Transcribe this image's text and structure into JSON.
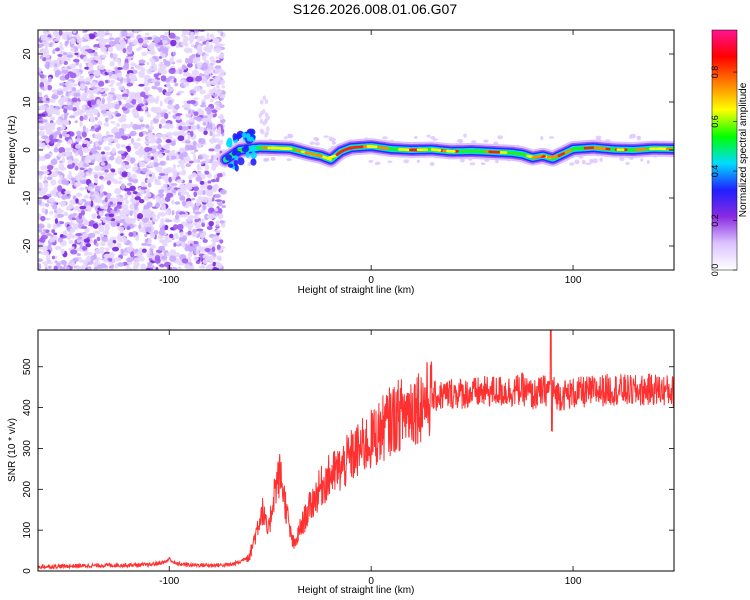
{
  "figure_title": "S126.2026.008.01.06.G07",
  "chart_data": [
    {
      "type": "heatmap",
      "title": "S126.2026.008.01.06.G07",
      "xlabel": "Height of straight line (km)",
      "ylabel": "Frequency (Hz)",
      "xlim": [
        -165,
        150
      ],
      "ylim": [
        -25,
        25
      ],
      "xticks": [
        -100,
        0,
        100
      ],
      "xtick_labels": [
        "-100",
        "0",
        "100"
      ],
      "yticks": [
        -20,
        -10,
        0,
        10,
        20
      ],
      "ytick_labels": [
        "-20",
        "-10",
        "0",
        "10",
        "20"
      ],
      "noise_region_end_km": -73,
      "signal_line": {
        "x": [
          -72,
          -65,
          -55,
          -40,
          -30,
          -25,
          -20,
          -15,
          -10,
          0,
          10,
          20,
          30,
          40,
          50,
          60,
          70,
          75,
          80,
          85,
          90,
          95,
          100,
          110,
          120,
          130,
          140,
          150
        ],
        "y": [
          -2,
          0,
          0.5,
          0.3,
          -0.8,
          -1.2,
          -2,
          -0.3,
          0.5,
          0.8,
          0.2,
          0,
          0.1,
          -0.3,
          -0.2,
          -0.4,
          -0.6,
          -0.9,
          -1.6,
          -1.2,
          -1.8,
          -0.8,
          0.2,
          0.5,
          0.1,
          0,
          0.3,
          0.2
        ]
      },
      "colorbar": {
        "label": "Normalized spectral amplitude",
        "range": [
          0.0,
          0.97
        ],
        "ticks": [
          0.0,
          0.2,
          0.4,
          0.6,
          0.8
        ],
        "tick_labels": [
          "0.0",
          "0.2",
          "0.4",
          "0.6",
          "0.8"
        ],
        "colors": [
          "#ffffff",
          "#dcc3ff",
          "#8a2be2",
          "#2020ff",
          "#00dcff",
          "#00ff00",
          "#ffff00",
          "#ff8000",
          "#ff0000",
          "#ff1493"
        ]
      }
    },
    {
      "type": "line",
      "xlabel": "Height of straight line (km)",
      "ylabel": "SNR (10 * v/v)",
      "xlim": [
        -165,
        150
      ],
      "ylim": [
        0,
        590
      ],
      "xticks": [
        -100,
        0,
        100
      ],
      "xtick_labels": [
        "-100",
        "0",
        "100"
      ],
      "yticks": [
        0,
        100,
        200,
        300,
        400,
        500
      ],
      "ytick_labels": [
        "0",
        "100",
        "200",
        "300",
        "400",
        "500"
      ],
      "color": "#ff3030",
      "series": [
        {
          "name": "SNR",
          "x": [
            -165,
            -150,
            -130,
            -110,
            -102,
            -100,
            -97,
            -90,
            -80,
            -70,
            -65,
            -60,
            -57,
            -54,
            -51,
            -48,
            -45,
            -42,
            -40,
            -38,
            -35,
            -30,
            -25,
            -20,
            -15,
            -10,
            -5,
            0,
            5,
            10,
            15,
            20,
            25,
            30,
            35,
            40,
            50,
            60,
            70,
            75,
            80,
            85,
            89,
            93,
            100,
            110,
            120,
            130,
            140,
            150
          ],
          "y": [
            10,
            12,
            14,
            15,
            22,
            30,
            18,
            15,
            14,
            15,
            22,
            40,
            95,
            150,
            90,
            195,
            240,
            150,
            90,
            60,
            105,
            160,
            205,
            235,
            250,
            280,
            300,
            320,
            345,
            370,
            385,
            400,
            410,
            425,
            430,
            435,
            435,
            440,
            440,
            445,
            430,
            440,
            445,
            430,
            435,
            440,
            445,
            440,
            445,
            440
          ]
        }
      ]
    }
  ]
}
